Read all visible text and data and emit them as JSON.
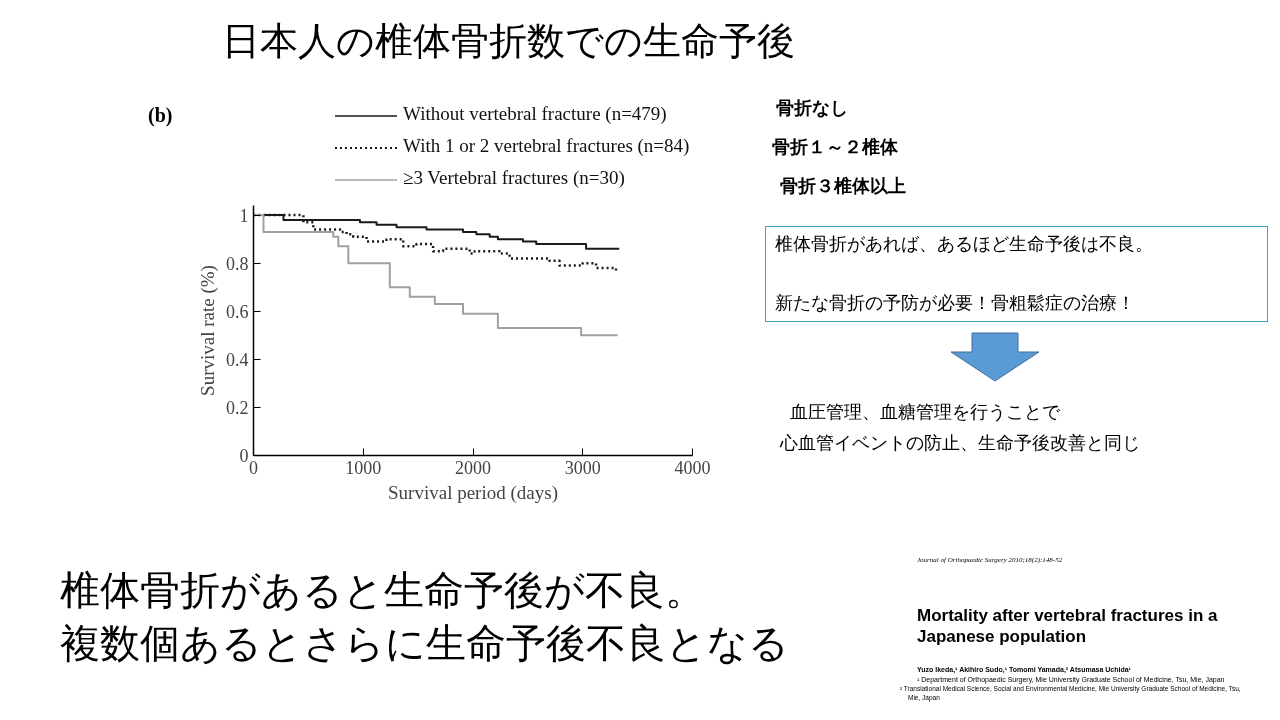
{
  "chart_data": {
    "type": "step",
    "title": "日本人の椎体骨折数での生命予後",
    "xlabel": "Survival period (days)",
    "ylabel": "Survival rate (%)",
    "xlim": [
      0,
      4000
    ],
    "xticks": [
      0,
      1000,
      2000,
      3000,
      4000
    ],
    "ylim": [
      0,
      1.04
    ],
    "yticks": [
      0,
      0.2,
      0.4,
      0.6,
      0.8,
      1
    ],
    "grid": false,
    "legend": "top",
    "series": [
      {
        "name": "Without vertebral fracture (n=479)",
        "color": "#1a1a1a",
        "line_style": "solid",
        "x": [
          0,
          91,
          273,
          970,
          1121,
          1303,
          1576,
          1909,
          2030,
          2152,
          2227,
          2455,
          2576,
          2848,
          3030,
          3242,
          3333
        ],
        "values": [
          1,
          1.0,
          0.98,
          0.97,
          0.96,
          0.95,
          0.94,
          0.93,
          0.92,
          0.91,
          0.9,
          0.89,
          0.88,
          0.88,
          0.86,
          0.86,
          0.86
        ]
      },
      {
        "name": "With 1 or 2 vertebral fractures (n=84)",
        "color": "#1a1a1a",
        "line_style": "dotted",
        "x": [
          0,
          455,
          545,
          712,
          803,
          848,
          909,
          1030,
          1212,
          1364,
          1485,
          1636,
          1727,
          1970,
          2015,
          2242,
          2333,
          2485,
          2697,
          2788,
          3000,
          3121,
          3303
        ],
        "values": [
          1,
          0.97,
          0.94,
          0.94,
          0.93,
          0.92,
          0.91,
          0.89,
          0.9,
          0.87,
          0.88,
          0.85,
          0.86,
          0.84,
          0.85,
          0.84,
          0.82,
          0.82,
          0.81,
          0.79,
          0.8,
          0.78,
          0.77
        ]
      },
      {
        "name": "≥3 Vertebral fractures (n=30)",
        "color": "#a0a0a0",
        "line_style": "solid",
        "x": [
          0,
          91,
          727,
          773,
          864,
          1167,
          1242,
          1424,
          1652,
          1909,
          2227,
          2985,
          3318
        ],
        "values": [
          1,
          0.93,
          0.91,
          0.87,
          0.8,
          0.8,
          0.7,
          0.66,
          0.63,
          0.59,
          0.53,
          0.5,
          0.5
        ]
      }
    ],
    "annotations": [
      "(b)",
      "骨折なし",
      "骨折１～２椎体",
      "骨折３椎体以上",
      "椎体骨折があれば、あるほど生命予後は不良。",
      "新たな骨折の予防が必要！骨粗鬆症の治療！",
      "血圧管理、血糖管理を行うことで",
      "心血管イベントの防止、生命予後改善と同じ",
      "椎体骨折があると生命予後が不良。",
      "複数個あるとさらに生命予後不良となる",
      "Journal of Orthopaedic Surgery 2010;18(2):148-52",
      "Mortality after vertebral fractures in a",
      "Japanese population",
      "Yuzo Ikeda,¹ Akihiro Sudo,¹ Tomomi Yamada,² Atsumasa Uchida¹",
      "¹ Department of Orthopaedic Surgery, Mie University Graduate School of Medicine, Tsu, Mie, Japan",
      "² Translational Medical Science, Social and Environmental Medicine, Mie University Graduate School of Medicine, Tsu,",
      "Mie, Japan"
    ]
  }
}
